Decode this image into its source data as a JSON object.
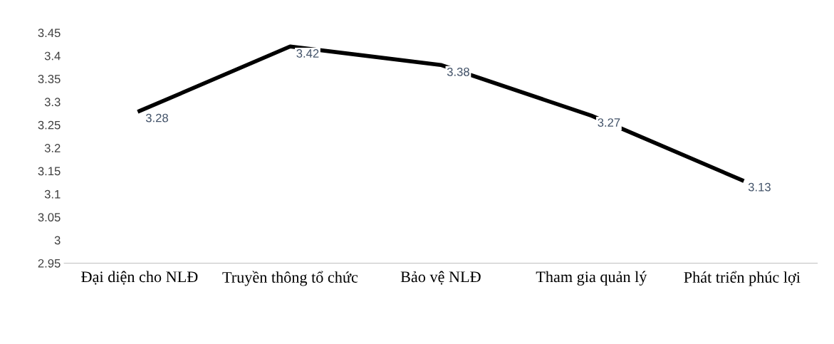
{
  "chart_data": {
    "type": "line",
    "categories": [
      "Đại diện cho NLĐ",
      "Truyền thông tổ chức",
      "Bảo vệ NLĐ",
      "Tham gia quản lý",
      "Phát triển phúc lợi"
    ],
    "series": [
      {
        "color": "#000000",
        "values": [
          3.28,
          3.42,
          3.38,
          3.27,
          3.13
        ]
      }
    ],
    "ylim": [
      2.95,
      3.45
    ],
    "yticks": [
      2.95,
      3,
      3.05,
      3.1,
      3.15,
      3.2,
      3.25,
      3.3,
      3.35,
      3.4,
      3.45
    ],
    "data_labels": true,
    "grid": false,
    "legend": false,
    "marker": "none",
    "line_style": "solid"
  }
}
